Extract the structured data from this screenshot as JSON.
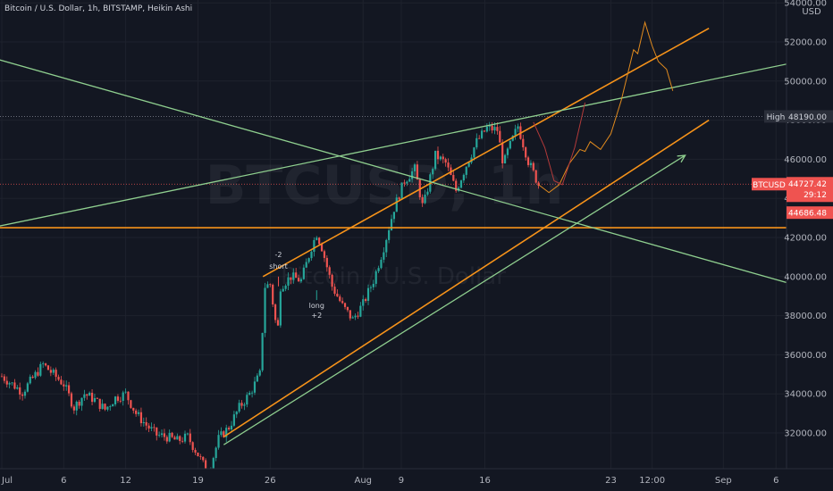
{
  "legend": {
    "symbol": "Bitcoin / U.S. Dollar",
    "interval": "1h",
    "exchange": "BITSTAMP",
    "chart_style": "Heikin Ashi"
  },
  "watermark": {
    "ticker": "BTCUSD, 1h",
    "name": "Bitcoin / U.S. Dollar"
  },
  "currency_label": "USD",
  "price_tags": {
    "high_label": "High",
    "high_value": "48190.00",
    "symbol_label": "BTCUSD",
    "last_price": "44727.42",
    "countdown": "29:12",
    "second_price": "44686.48"
  },
  "colors": {
    "background": "#131722",
    "up_candle": "#26a69a",
    "down_candle": "#ef5350",
    "orange_line": "#f7931a",
    "green_line": "#8fcf8f",
    "high_tag": "#2a2e39",
    "price_tag": "#ef5350"
  },
  "chart_data": {
    "type": "candlestick",
    "title": "Bitcoin / U.S. Dollar, 1h, BITSTAMP, Heikin Ashi",
    "y_ticks": [
      32000,
      34000,
      36000,
      38000,
      40000,
      42000,
      44000,
      46000,
      48000,
      50000,
      52000,
      54000
    ],
    "y_tick_labels": [
      "32000.00",
      "34000.00",
      "36000.00",
      "38000.00",
      "40000.00",
      "42000.00",
      "44000.00",
      "46000.00",
      "48000.00",
      "50000.00",
      "52000.00",
      "54000.00"
    ],
    "ylim": [
      30600,
      54300
    ],
    "x_labels": [
      "Jul",
      "6",
      "12",
      "19",
      "26",
      "Aug",
      "9",
      "16",
      "23",
      "12:00",
      "Sep",
      "6"
    ],
    "price_path": [
      {
        "d": 0,
        "p": 34900
      },
      {
        "d": 2,
        "p": 34100
      },
      {
        "d": 4,
        "p": 35500
      },
      {
        "d": 5,
        "p": 35000
      },
      {
        "d": 6,
        "p": 34500
      },
      {
        "d": 7,
        "p": 33300
      },
      {
        "d": 8,
        "p": 34000
      },
      {
        "d": 9,
        "p": 33700
      },
      {
        "d": 10,
        "p": 33200
      },
      {
        "d": 11,
        "p": 33800
      },
      {
        "d": 12,
        "p": 34000
      },
      {
        "d": 13,
        "p": 33000
      },
      {
        "d": 14,
        "p": 32400
      },
      {
        "d": 15,
        "p": 31900
      },
      {
        "d": 16,
        "p": 31800
      },
      {
        "d": 17,
        "p": 31600
      },
      {
        "d": 18,
        "p": 31800
      },
      {
        "d": 19,
        "p": 30900
      },
      {
        "d": 20,
        "p": 29900
      },
      {
        "d": 21,
        "p": 31700
      },
      {
        "d": 22,
        "p": 32300
      },
      {
        "d": 23,
        "p": 33300
      },
      {
        "d": 24,
        "p": 34000
      },
      {
        "d": 25,
        "p": 35000
      },
      {
        "d": 25.5,
        "p": 39500
      },
      {
        "d": 26,
        "p": 39600
      },
      {
        "d": 26.7,
        "p": 37000
      },
      {
        "d": 27,
        "p": 39500
      },
      {
        "d": 28,
        "p": 40000
      },
      {
        "d": 29,
        "p": 39800
      },
      {
        "d": 30,
        "p": 41500
      },
      {
        "d": 30.5,
        "p": 42200
      },
      {
        "d": 31,
        "p": 41500
      },
      {
        "d": 32,
        "p": 39500
      },
      {
        "d": 33,
        "p": 38500
      },
      {
        "d": 34,
        "p": 37800
      },
      {
        "d": 35,
        "p": 38600
      },
      {
        "d": 36,
        "p": 39800
      },
      {
        "d": 37,
        "p": 41500
      },
      {
        "d": 38,
        "p": 43500
      },
      {
        "d": 39,
        "p": 44900
      },
      {
        "d": 40,
        "p": 45500
      },
      {
        "d": 40.8,
        "p": 43500
      },
      {
        "d": 42,
        "p": 46200
      },
      {
        "d": 43,
        "p": 45800
      },
      {
        "d": 44,
        "p": 44400
      },
      {
        "d": 45,
        "p": 45700
      },
      {
        "d": 46,
        "p": 46900
      },
      {
        "d": 47,
        "p": 47600
      },
      {
        "d": 48,
        "p": 47500
      },
      {
        "d": 48.6,
        "p": 45700
      },
      {
        "d": 49,
        "p": 46400
      },
      {
        "d": 50,
        "p": 47700
      },
      {
        "d": 51,
        "p": 45900
      },
      {
        "d": 52,
        "p": 44700
      }
    ],
    "lines": [
      {
        "name": "channel-upper",
        "color": "orange",
        "from": {
          "d": 25.3,
          "p": 40000
        },
        "to": {
          "d": 68.5,
          "p": 52700
        }
      },
      {
        "name": "channel-lower",
        "color": "orange",
        "from": {
          "d": 21.5,
          "p": 31800
        },
        "to": {
          "d": 68.5,
          "p": 48000
        }
      },
      {
        "name": "horizontal-support",
        "color": "orange",
        "from": {
          "d": -1,
          "p": 42500
        },
        "to": {
          "d": 80,
          "p": 42500
        }
      },
      {
        "name": "green-arrow-line",
        "color": "green",
        "from": {
          "d": 21.5,
          "p": 31400
        },
        "to": {
          "d": 66.2,
          "p": 46200
        }
      },
      {
        "name": "green-rising-line",
        "color": "green",
        "from": {
          "d": -1,
          "p": 42500
        },
        "to": {
          "d": 80,
          "p": 51300
        }
      },
      {
        "name": "green-falling-line",
        "color": "green",
        "from": {
          "d": -1,
          "p": 51200
        },
        "to": {
          "d": 80,
          "p": 39100
        }
      }
    ],
    "annotations": [
      {
        "text": "-2",
        "d": 26.8,
        "p": 41000
      },
      {
        "text": "short",
        "d": 26.8,
        "p": 40400
      },
      {
        "text": "long",
        "d": 30.5,
        "p": 38400
      },
      {
        "text": "+2",
        "d": 30.5,
        "p": 37900
      }
    ]
  }
}
